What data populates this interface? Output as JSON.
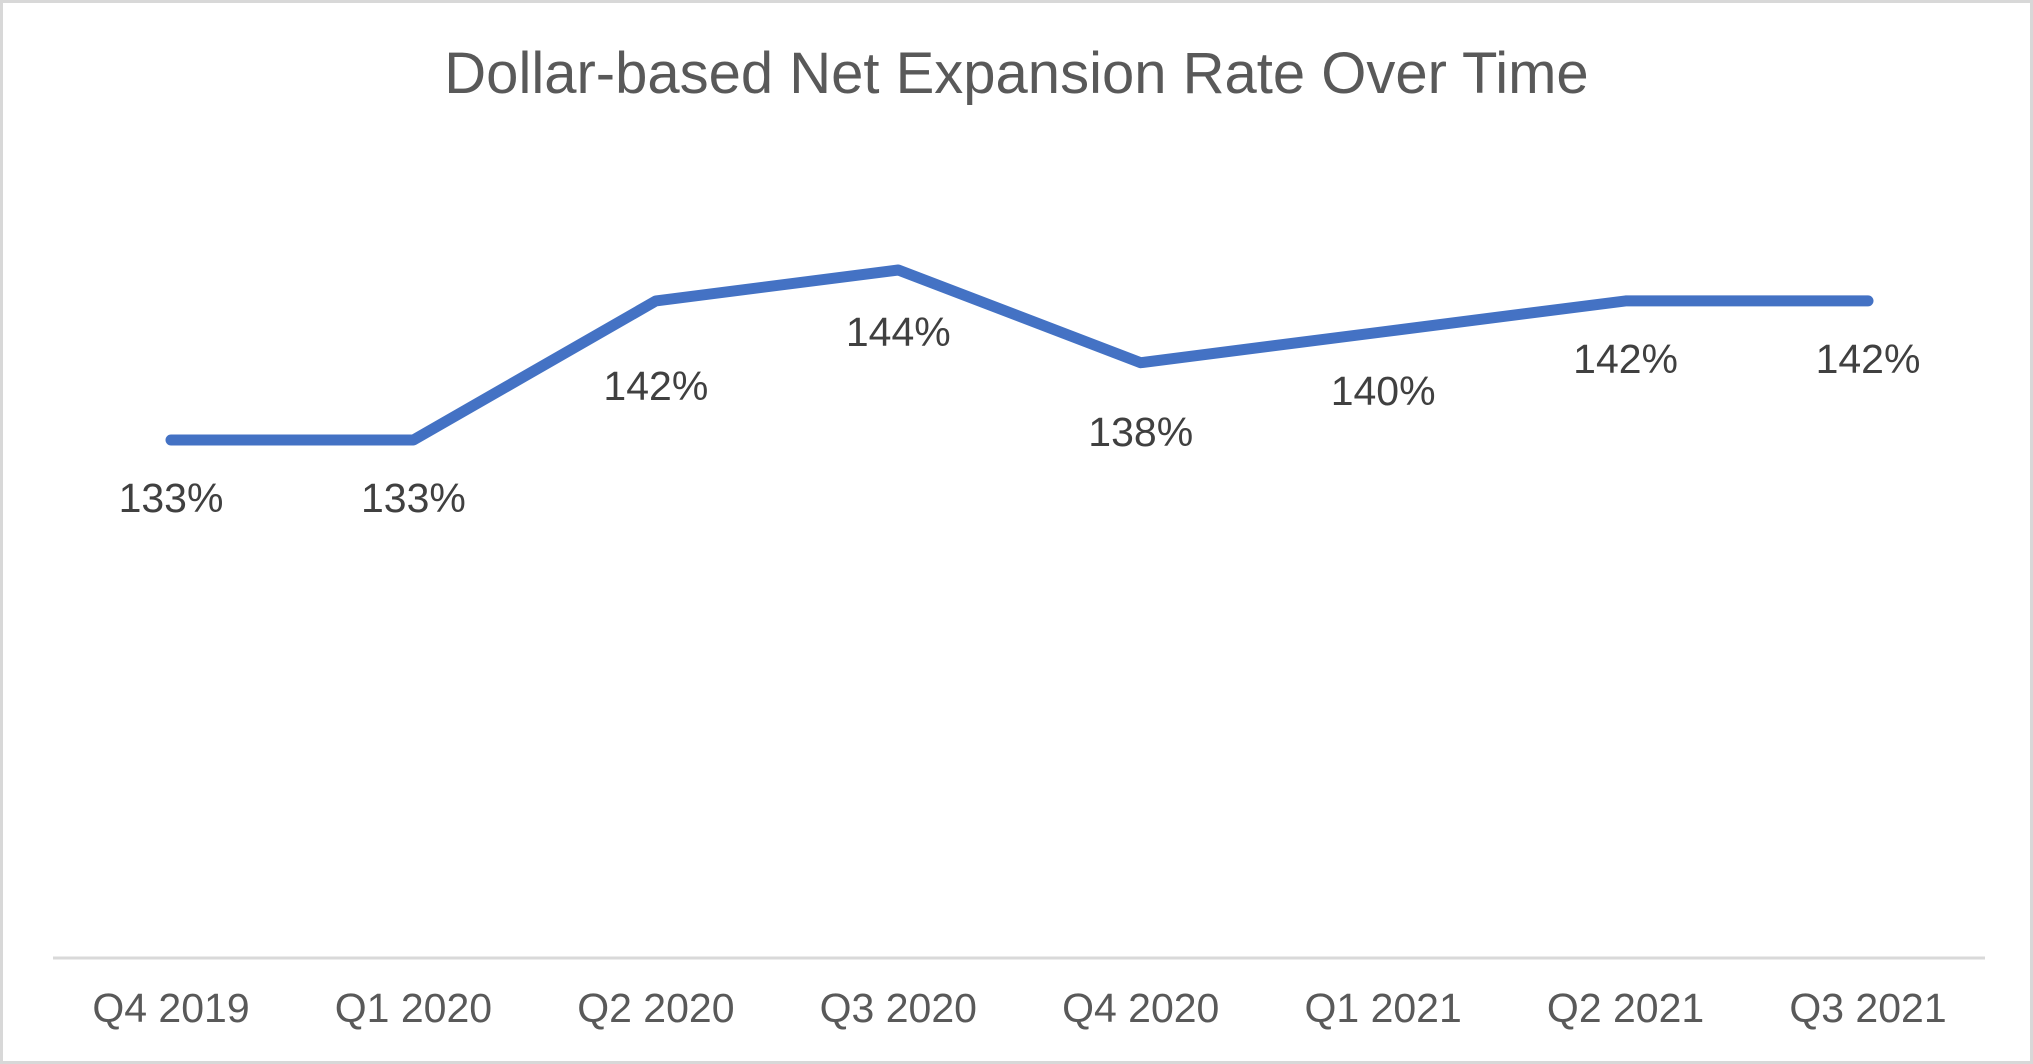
{
  "page": {
    "background_color": "#ffffff",
    "border_color": "#d8d8d8"
  },
  "chart_data": {
    "type": "line",
    "title": "Dollar-based Net Expansion Rate Over Time",
    "categories": [
      "Q4 2019",
      "Q1 2020",
      "Q2 2020",
      "Q3 2020",
      "Q4 2020",
      "Q1 2021",
      "Q2 2021",
      "Q3 2021"
    ],
    "values": [
      133,
      133,
      142,
      144,
      138,
      140,
      142,
      142
    ],
    "data_labels": [
      "133%",
      "133%",
      "142%",
      "144%",
      "138%",
      "140%",
      "142%",
      "142%"
    ],
    "xlabel": "",
    "ylabel": "",
    "y_axis_visible": false,
    "grid": false,
    "legend": "none",
    "colors": {
      "line": "#4472C4",
      "title_text": "#595959",
      "data_label_text": "#404040",
      "axis_label_text": "#595959",
      "axis_line": "#D9D9D9"
    }
  }
}
